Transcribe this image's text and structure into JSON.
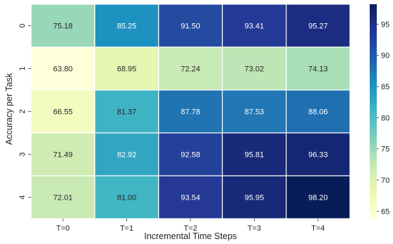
{
  "chart_data": {
    "type": "heatmap",
    "xlabel": "Incremental Time Steps",
    "ylabel": "Accuracy per Task",
    "x_categories": [
      "T=0",
      "T=1",
      "T=2",
      "T=3",
      "T=4"
    ],
    "y_categories": [
      "0",
      "1",
      "2",
      "3",
      "4"
    ],
    "values": [
      [
        75.18,
        85.25,
        91.5,
        93.41,
        95.27
      ],
      [
        63.8,
        68.95,
        72.24,
        73.02,
        74.13
      ],
      [
        66.55,
        81.37,
        87.78,
        87.53,
        88.06
      ],
      [
        71.49,
        82.92,
        92.58,
        95.81,
        96.33
      ],
      [
        72.01,
        81.0,
        93.54,
        95.95,
        98.2
      ]
    ],
    "colormap": "YlGnBu",
    "color_range": [
      63.8,
      98.2
    ],
    "colorbar_ticks": [
      65,
      70,
      75,
      80,
      85,
      90,
      95
    ],
    "annotations": true,
    "value_format": "2 decimals"
  }
}
